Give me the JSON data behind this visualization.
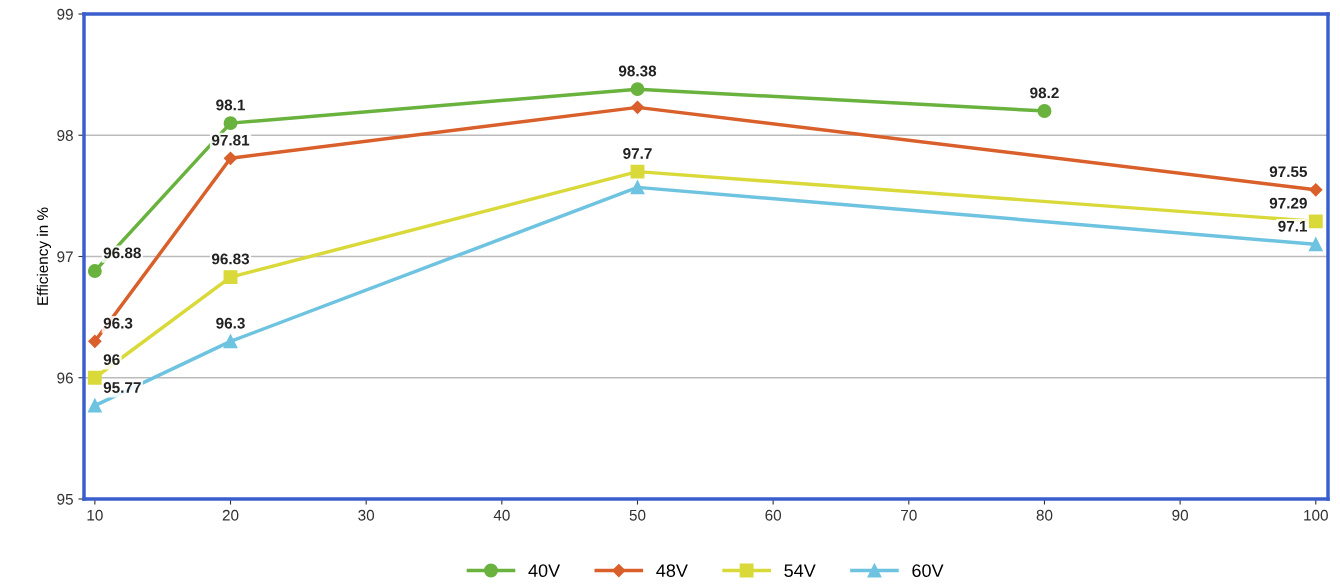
{
  "chart_data": {
    "type": "line",
    "ylabel": "Efficiency in %",
    "xlim": [
      9.2,
      100.9
    ],
    "ylim": [
      95,
      99
    ],
    "xticks": [
      10,
      20,
      30,
      40,
      50,
      60,
      70,
      80,
      90,
      100
    ],
    "yticks": [
      95,
      96,
      97,
      98,
      99
    ],
    "grid": "y",
    "legend": "bottom",
    "series": [
      {
        "name": "40V",
        "color": "#6ab23e",
        "marker": "circle",
        "x": [
          10,
          20,
          50,
          80
        ],
        "values": [
          96.88,
          98.1,
          98.38,
          98.2
        ],
        "value_labels": [
          "96.88",
          "98.1",
          "98.38",
          "98.2"
        ]
      },
      {
        "name": "48V",
        "color": "#d95f2b",
        "marker": "diamond",
        "x": [
          10,
          20,
          50,
          100
        ],
        "values": [
          96.3,
          97.81,
          98.23,
          97.55
        ],
        "value_labels": [
          "96.3",
          "97.81",
          null,
          "97.55"
        ]
      },
      {
        "name": "54V",
        "color": "#d9d93a",
        "marker": "square",
        "x": [
          10,
          20,
          50,
          100
        ],
        "values": [
          96,
          96.83,
          97.7,
          97.29
        ],
        "value_labels": [
          "96",
          "96.83",
          "97.7",
          "97.29"
        ]
      },
      {
        "name": "60V",
        "color": "#6ec3e0",
        "marker": "triangle",
        "x": [
          10,
          20,
          50,
          100
        ],
        "values": [
          95.77,
          96.3,
          97.57,
          97.1
        ],
        "value_labels": [
          "95.77",
          "96.3",
          null,
          "97.1"
        ]
      }
    ]
  }
}
